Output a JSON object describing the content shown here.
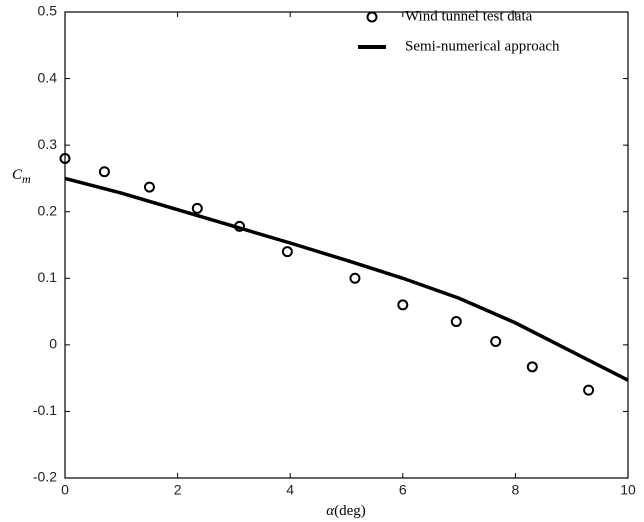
{
  "chart_data": {
    "type": "scatter-line",
    "xlabel": {
      "symbol": "α",
      "unit": "(deg)"
    },
    "ylabel": {
      "symbol": "C",
      "subscript": "m"
    },
    "xlim": [
      0,
      10
    ],
    "ylim": [
      -0.2,
      0.5
    ],
    "xticks": [
      0,
      2,
      4,
      6,
      8,
      10
    ],
    "yticks": [
      -0.2,
      -0.1,
      0,
      0.1,
      0.2,
      0.3,
      0.4,
      0.5
    ],
    "legend": "upper right",
    "series": [
      {
        "name": "Wind tunnel test data",
        "kind": "markers",
        "color": "#000000",
        "x": [
          0,
          0.7,
          1.5,
          2.35,
          3.1,
          3.95,
          5.15,
          6,
          6.95,
          7.65,
          8.3,
          9.3
        ],
        "values": [
          0.28,
          0.26,
          0.237,
          0.205,
          0.178,
          0.14,
          0.1,
          0.06,
          0.035,
          0.005,
          -0.033,
          -0.068
        ]
      },
      {
        "name": "Semi-numerical approach",
        "kind": "line",
        "color": "#000000",
        "x": [
          0,
          1,
          2,
          3,
          4,
          5,
          6,
          7,
          8,
          9,
          10
        ],
        "values": [
          0.25,
          0.228,
          0.203,
          0.178,
          0.153,
          0.127,
          0.1,
          0.07,
          0.033,
          -0.01,
          -0.053
        ]
      }
    ]
  }
}
